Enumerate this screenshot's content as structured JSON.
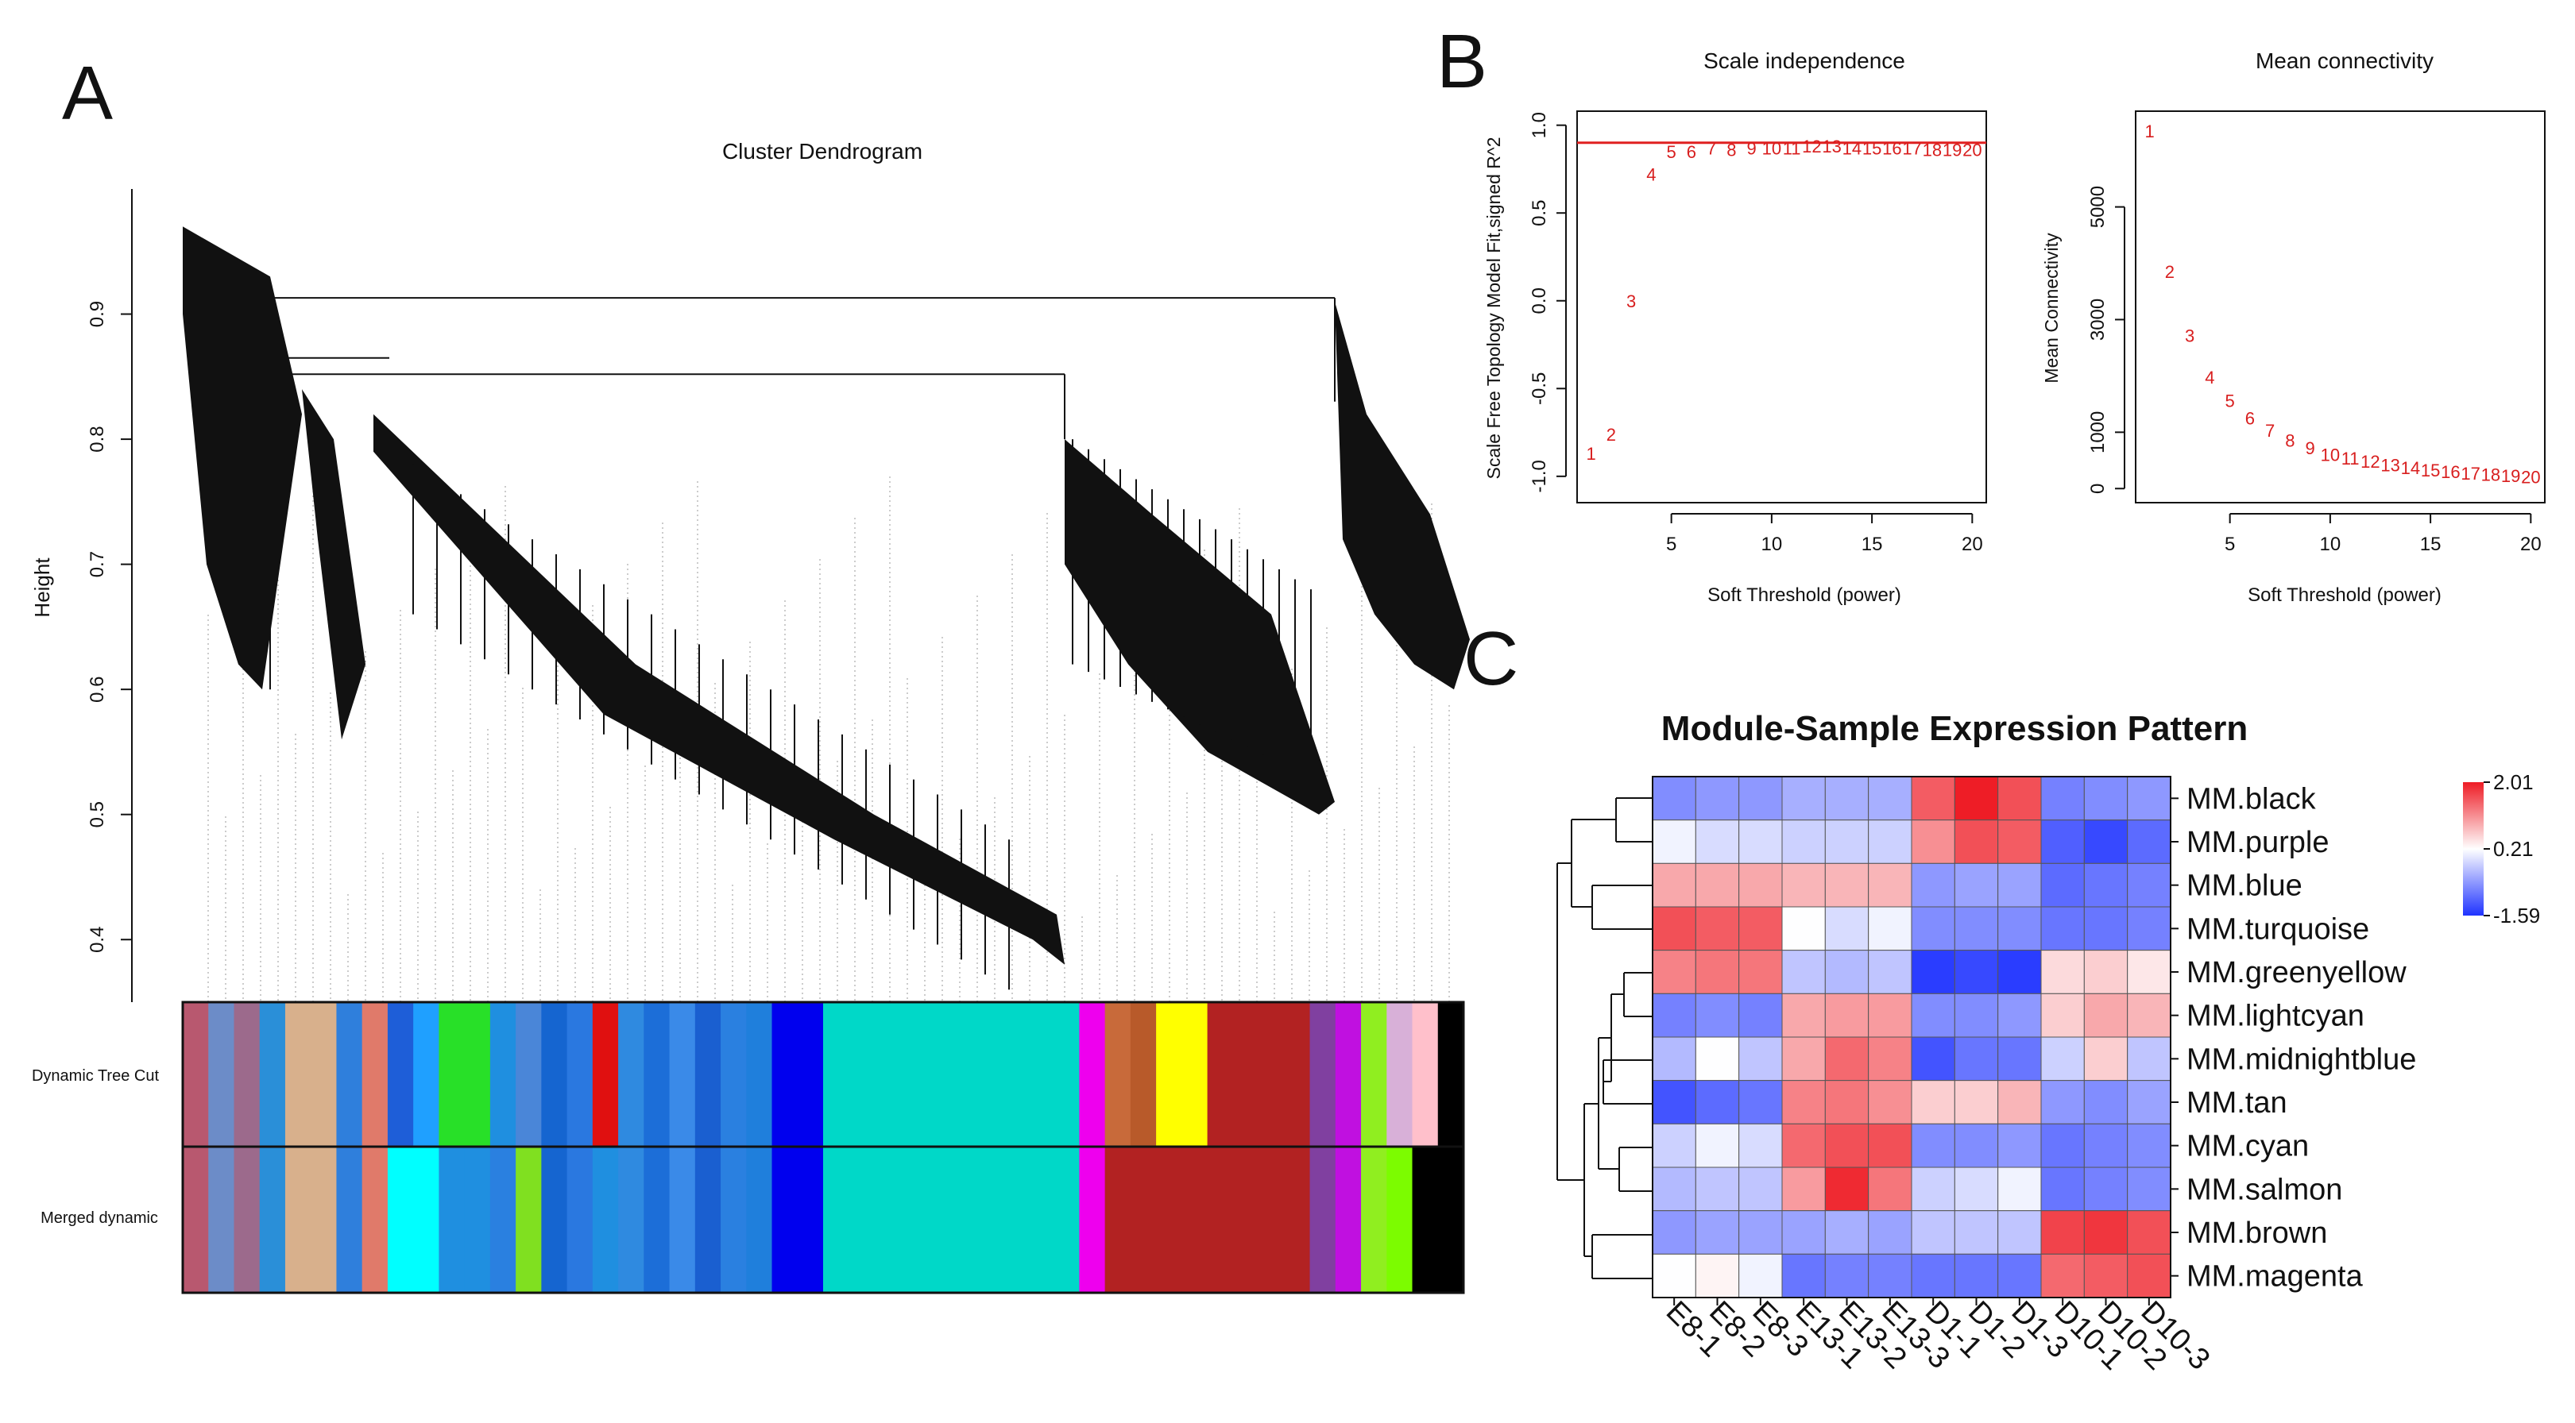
{
  "panels": {
    "A": "A",
    "B": "B",
    "C": "C"
  },
  "colors": {
    "fit_line": "#e02020",
    "point_text": "#d81e1e",
    "low": "#1f33ff",
    "mid": "#ffffff",
    "high": "#ee1c25"
  },
  "chart_data": [
    {
      "type": "dendrogram",
      "title": "Cluster Dendrogram",
      "ylabel": "Height",
      "ylim": [
        0.35,
        1.0
      ],
      "yticks": [
        0.4,
        0.5,
        0.6,
        0.7,
        0.8,
        0.9
      ],
      "ytick_labels": [
        "0.4",
        "0.5",
        "0.6",
        "0.7",
        "0.8",
        "0.9"
      ],
      "bar_labels": [
        "Dynamic Tree Cut",
        "Merged dynamic"
      ],
      "dynamic_colors": [
        "#b8586f",
        "#6c8cc8",
        "#9c6a8c",
        "#2a8fd8",
        "#d8b08c",
        "#d8b08c",
        "#2f7fdc",
        "#e07a6a",
        "#1e5ed8",
        "#1fa0ff",
        "#28e028",
        "#28e028",
        "#1f8fe0",
        "#4a86d8",
        "#1565d0",
        "#2a78e0",
        "#e01010",
        "#2f8ae0",
        "#1c6ed8",
        "#3a8ae8",
        "#1a5fd0",
        "#2a80e0",
        "#1f7fdc",
        "#0000ee",
        "#0000ee",
        "#00d8c8",
        "#00d8c8",
        "#00d8c8",
        "#00d8c8",
        "#00d8c8",
        "#00d8c8",
        "#00d8c8",
        "#00d8c8",
        "#00d8c8",
        "#00d8c8",
        "#ee00ee",
        "#c86a3a",
        "#b85a2a",
        "#ffff00",
        "#ffff00",
        "#b22222",
        "#b22222",
        "#b22222",
        "#b22222",
        "#8040a0",
        "#c010e0",
        "#90ee20",
        "#d8b0d8",
        "#ffc0cb",
        "#000000"
      ],
      "merged_colors": [
        "#b8586f",
        "#6c8cc8",
        "#9c6a8c",
        "#2a8fd8",
        "#d8b08c",
        "#d8b08c",
        "#2f7fdc",
        "#e07a6a",
        "#00ffff",
        "#00ffff",
        "#1f8fe0",
        "#1f8fe0",
        "#2a80e0",
        "#80e020",
        "#1565d0",
        "#2a78e0",
        "#1f8fe0",
        "#2f8ae0",
        "#1c6ed8",
        "#3a8ae8",
        "#1a5fd0",
        "#2a80e0",
        "#1f7fdc",
        "#0000ee",
        "#0000ee",
        "#00d8c8",
        "#00d8c8",
        "#00d8c8",
        "#00d8c8",
        "#00d8c8",
        "#00d8c8",
        "#00d8c8",
        "#00d8c8",
        "#00d8c8",
        "#00d8c8",
        "#ee00ee",
        "#b22222",
        "#b22222",
        "#b22222",
        "#b22222",
        "#b22222",
        "#b22222",
        "#b22222",
        "#b22222",
        "#8040a0",
        "#c010e0",
        "#90ee20",
        "#7cfc00",
        "#000000",
        "#000000"
      ]
    },
    {
      "type": "scatter",
      "title": "Scale independence",
      "xlabel": "Soft Threshold (power)",
      "ylabel": "Scale Free Topology Model Fit,signed R^2",
      "xlim": [
        0.3,
        20.7
      ],
      "ylim": [
        -1.15,
        1.08
      ],
      "xticks": [
        5,
        10,
        15,
        20
      ],
      "yticks": [
        -1.0,
        -0.5,
        0.0,
        0.5,
        1.0
      ],
      "ytick_labels": [
        "-1.0",
        "-0.5",
        "0.0",
        "0.5",
        "1.0"
      ],
      "cutoff": 0.9,
      "x": [
        1,
        2,
        3,
        4,
        5,
        6,
        7,
        8,
        9,
        10,
        11,
        12,
        13,
        14,
        15,
        16,
        17,
        18,
        19,
        20
      ],
      "y": [
        -0.87,
        -0.76,
        0.0,
        0.72,
        0.85,
        0.85,
        0.87,
        0.86,
        0.87,
        0.87,
        0.87,
        0.88,
        0.88,
        0.87,
        0.87,
        0.87,
        0.87,
        0.86,
        0.86,
        0.86
      ],
      "point_labels": [
        "1",
        "2",
        "3",
        "4",
        "5",
        "6",
        "7",
        "8",
        "9",
        "10",
        "11",
        "12",
        "13",
        "14",
        "15",
        "16",
        "17",
        "18",
        "19",
        "20"
      ]
    },
    {
      "type": "scatter",
      "title": "Mean connectivity",
      "xlabel": "Soft Threshold (power)",
      "ylabel": "Mean Connectivity",
      "xlim": [
        0.3,
        20.7
      ],
      "ylim": [
        -250,
        6700
      ],
      "xticks": [
        5,
        10,
        15,
        20
      ],
      "yticks": [
        0,
        1000,
        3000,
        5000
      ],
      "ytick_labels": [
        "0",
        "1000",
        "3000",
        "5000"
      ],
      "x": [
        1,
        2,
        3,
        4,
        5,
        6,
        7,
        8,
        9,
        10,
        11,
        12,
        13,
        14,
        15,
        16,
        17,
        18,
        19,
        20
      ],
      "y": [
        6350,
        3850,
        2720,
        1980,
        1560,
        1250,
        1030,
        860,
        720,
        600,
        540,
        480,
        420,
        370,
        330,
        300,
        270,
        250,
        230,
        210
      ],
      "point_labels": [
        "1",
        "2",
        "3",
        "4",
        "5",
        "6",
        "7",
        "8",
        "9",
        "10",
        "11",
        "12",
        "13",
        "14",
        "15",
        "16",
        "17",
        "18",
        "19",
        "20"
      ]
    },
    {
      "type": "heatmap",
      "title": "Module-Sample Expression Pattern",
      "rows": [
        "MM.black",
        "MM.purple",
        "MM.blue",
        "MM.turquoise",
        "MM.greenyellow",
        "MM.lightcyan",
        "MM.midnightblue",
        "MM.tan",
        "MM.cyan",
        "MM.salmon",
        "MM.brown",
        "MM.magenta"
      ],
      "cols": [
        "E8-1",
        "E8-2",
        "E8-3",
        "E13-1",
        "E13-2",
        "E13-3",
        "D1-1",
        "D1-2",
        "D1-3",
        "D10-1",
        "D10-2",
        "D10-3"
      ],
      "values": [
        [
          -0.8,
          -0.7,
          -0.7,
          -0.5,
          -0.5,
          -0.5,
          1.5,
          2.0,
          1.6,
          -0.9,
          -0.8,
          -0.7
        ],
        [
          0.1,
          -0.1,
          -0.1,
          -0.2,
          -0.2,
          -0.2,
          1.1,
          1.6,
          1.5,
          -1.2,
          -1.4,
          -1.1
        ],
        [
          0.9,
          0.9,
          0.9,
          0.8,
          0.8,
          0.8,
          -0.7,
          -0.6,
          -0.6,
          -1.1,
          -1.0,
          -0.9
        ],
        [
          1.6,
          1.5,
          1.5,
          0.2,
          -0.1,
          0.1,
          -0.8,
          -0.8,
          -0.8,
          -1.0,
          -1.0,
          -0.9
        ],
        [
          1.2,
          1.3,
          1.3,
          -0.3,
          -0.4,
          -0.3,
          -1.5,
          -1.4,
          -1.5,
          0.5,
          0.6,
          0.4
        ],
        [
          -0.9,
          -0.8,
          -0.9,
          0.9,
          1.0,
          1.0,
          -0.8,
          -0.8,
          -0.7,
          0.6,
          0.9,
          0.8
        ],
        [
          -0.4,
          0.2,
          -0.3,
          0.9,
          1.4,
          1.2,
          -1.3,
          -1.0,
          -1.0,
          -0.2,
          0.6,
          -0.3
        ],
        [
          -1.3,
          -1.1,
          -1.0,
          1.2,
          1.3,
          1.1,
          0.6,
          0.6,
          0.8,
          -0.7,
          -0.8,
          -0.6
        ],
        [
          -0.2,
          0.1,
          -0.1,
          1.4,
          1.6,
          1.6,
          -0.8,
          -0.8,
          -0.7,
          -1.0,
          -0.9,
          -0.8
        ],
        [
          -0.4,
          -0.3,
          -0.3,
          1.0,
          1.9,
          1.3,
          -0.2,
          -0.1,
          0.1,
          -1.0,
          -0.9,
          -0.8
        ],
        [
          -0.7,
          -0.6,
          -0.6,
          -0.6,
          -0.5,
          -0.6,
          -0.3,
          -0.3,
          -0.3,
          1.7,
          1.8,
          1.6
        ],
        [
          0.2,
          0.3,
          0.1,
          -1.0,
          -0.9,
          -0.9,
          -1.0,
          -1.0,
          -1.0,
          1.4,
          1.5,
          1.6
        ]
      ],
      "vmin": -1.59,
      "vmid": 0.21,
      "vmax": 2.01,
      "legend_labels": [
        "2.01",
        "0.21",
        "-1.59"
      ]
    }
  ]
}
